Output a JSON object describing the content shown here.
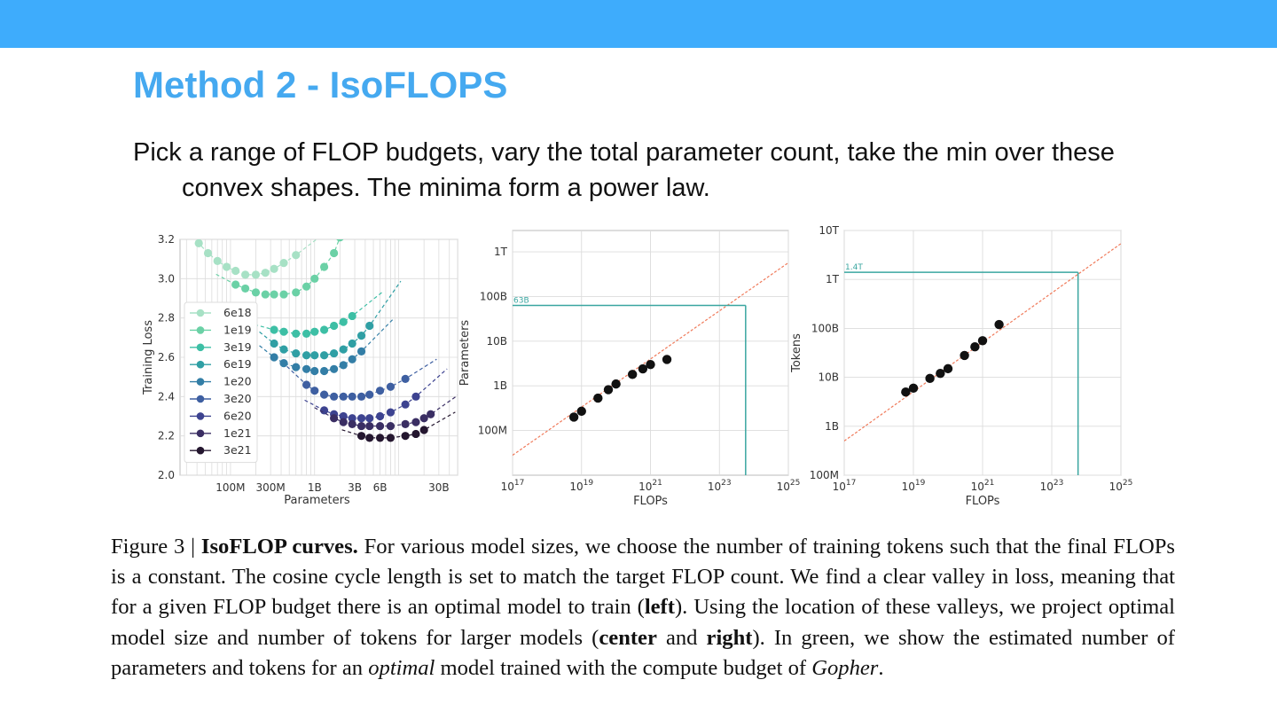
{
  "slide": {
    "title": "Method 2 - IsoFLOPS",
    "bullet_line1": "Pick a range of FLOP budgets, vary the total parameter count, take the min over these",
    "bullet_line2": "convex shapes. The minima form a power law."
  },
  "caption": {
    "fig_label": "Figure 3 | ",
    "fig_title": "IsoFLOP curves.",
    "t1": " For various model sizes, we choose the number of training tokens such that the final FLOPs is a constant. The cosine cycle length is set to match the target FLOP count. We find a clear valley in loss, meaning that for a given FLOP budget there is an optimal model to train (",
    "b_left": "left",
    "t2": "). Using the location of these valleys, we project optimal model size and number of tokens for larger models (",
    "b_center": "center",
    "t3": " and ",
    "b_right": "right",
    "t4": "). In green, we show the estimated number of parameters and tokens for an ",
    "i_optimal": "optimal",
    "t5": " model trained with the compute budget of ",
    "i_gopher": "Gopher",
    "t6": "."
  },
  "colors": {
    "topbar": "#3eacfc",
    "title": "#45a9f0",
    "projection": "#3aa6a0",
    "fit_line": "#f07a5a"
  },
  "chart_data": [
    {
      "type": "line",
      "panel": "left",
      "xlabel": "Parameters",
      "ylabel": "Training Loss",
      "x_scale": "log",
      "ylim": [
        2.0,
        3.2
      ],
      "x_ticks": [
        {
          "value": 100000000.0,
          "label": "100M"
        },
        {
          "value": 300000000.0,
          "label": "300M"
        },
        {
          "value": 1000000000.0,
          "label": "1B"
        },
        {
          "value": 3000000000.0,
          "label": "3B"
        },
        {
          "value": 6000000000.0,
          "label": "6B"
        },
        {
          "value": 30000000000.0,
          "label": "30B"
        }
      ],
      "y_ticks": [
        {
          "value": 2.0,
          "label": "2.0"
        },
        {
          "value": 2.2,
          "label": "2.2"
        },
        {
          "value": 2.4,
          "label": "2.4"
        },
        {
          "value": 2.6,
          "label": "2.6"
        },
        {
          "value": 2.8,
          "label": "2.8"
        },
        {
          "value": 3.0,
          "label": "3.0"
        },
        {
          "value": 3.2,
          "label": "3.2"
        }
      ],
      "grid": true,
      "legend_position": "left",
      "series": [
        {
          "name": "6e18",
          "color": "#a7e1c5",
          "x": [
            42000000.0,
            54000000.0,
            70000000.0,
            90000000.0,
            115000000.0,
            150000000.0,
            200000000.0,
            260000000.0,
            330000000.0,
            430000000.0,
            600000000.0
          ],
          "y": [
            3.18,
            3.13,
            3.09,
            3.06,
            3.04,
            3.02,
            3.02,
            3.03,
            3.05,
            3.08,
            3.12
          ]
        },
        {
          "name": "1e19",
          "color": "#6bd1a6",
          "x": [
            115000000.0,
            150000000.0,
            200000000.0,
            260000000.0,
            330000000.0,
            430000000.0,
            600000000.0,
            800000000.0,
            1000000000.0,
            1300000000.0,
            1700000000.0,
            2000000000.0
          ],
          "y": [
            2.97,
            2.95,
            2.93,
            2.92,
            2.92,
            2.92,
            2.93,
            2.96,
            3.0,
            3.06,
            3.13,
            3.21
          ]
        },
        {
          "name": "3e19",
          "color": "#3dbfa5",
          "x": [
            330000000.0,
            430000000.0,
            600000000.0,
            800000000.0,
            1000000000.0,
            1300000000.0,
            1700000000.0,
            2200000000.0,
            2800000000.0
          ],
          "y": [
            2.74,
            2.73,
            2.72,
            2.72,
            2.73,
            2.74,
            2.76,
            2.78,
            2.81
          ]
        },
        {
          "name": "6e19",
          "color": "#2f9fa4",
          "x": [
            330000000.0,
            430000000.0,
            600000000.0,
            800000000.0,
            1000000000.0,
            1300000000.0,
            1700000000.0,
            2200000000.0,
            2800000000.0,
            3600000000.0,
            4500000000.0
          ],
          "y": [
            2.67,
            2.64,
            2.62,
            2.61,
            2.61,
            2.61,
            2.62,
            2.64,
            2.67,
            2.71,
            2.76
          ]
        },
        {
          "name": "1e20",
          "color": "#337ea6",
          "x": [
            330000000.0,
            430000000.0,
            600000000.0,
            800000000.0,
            1000000000.0,
            1300000000.0,
            1700000000.0,
            2200000000.0,
            2800000000.0,
            3600000000.0
          ],
          "y": [
            2.6,
            2.57,
            2.55,
            2.54,
            2.53,
            2.53,
            2.54,
            2.56,
            2.59,
            2.63
          ]
        },
        {
          "name": "3e20",
          "color": "#3e5fa1",
          "x": [
            800000000.0,
            1000000000.0,
            1300000000.0,
            1700000000.0,
            2200000000.0,
            2800000000.0,
            3600000000.0,
            4500000000.0,
            6000000000.0,
            8000000000.0,
            12000000000.0
          ],
          "y": [
            2.46,
            2.43,
            2.41,
            2.4,
            2.4,
            2.4,
            2.4,
            2.41,
            2.43,
            2.45,
            2.49
          ]
        },
        {
          "name": "6e20",
          "color": "#3d4390",
          "x": [
            1300000000.0,
            1700000000.0,
            2200000000.0,
            2800000000.0,
            3600000000.0,
            4500000000.0,
            6000000000.0,
            8000000000.0,
            12000000000.0,
            16000000000.0
          ],
          "y": [
            2.33,
            2.31,
            2.3,
            2.29,
            2.29,
            2.29,
            2.3,
            2.32,
            2.36,
            2.4
          ]
        },
        {
          "name": "1e21",
          "color": "#3a2e63",
          "x": [
            1700000000.0,
            2200000000.0,
            2800000000.0,
            3600000000.0,
            4500000000.0,
            6000000000.0,
            8000000000.0,
            12000000000.0,
            16000000000.0,
            20000000000.0,
            24000000000.0
          ],
          "y": [
            2.29,
            2.27,
            2.26,
            2.25,
            2.25,
            2.25,
            2.25,
            2.26,
            2.27,
            2.29,
            2.31
          ]
        },
        {
          "name": "3e21",
          "color": "#24162f",
          "x": [
            3600000000.0,
            4500000000.0,
            6000000000.0,
            8000000000.0,
            12000000000.0,
            16000000000.0,
            20000000000.0
          ],
          "y": [
            2.2,
            2.19,
            2.19,
            2.19,
            2.2,
            2.21,
            2.23
          ]
        }
      ]
    },
    {
      "type": "scatter",
      "panel": "center",
      "xlabel": "FLOPs",
      "ylabel": "Parameters",
      "x_scale": "log",
      "y_scale": "log",
      "xlim": [
        1e+17,
        1e+25
      ],
      "ylim": [
        10000000.0,
        3000000000000.0
      ],
      "x_ticks": [
        {
          "value": 1e+17,
          "base": "10",
          "exp": "17"
        },
        {
          "value": 1e+19,
          "base": "10",
          "exp": "19"
        },
        {
          "value": 1e+21,
          "base": "10",
          "exp": "21"
        },
        {
          "value": 1e+23,
          "base": "10",
          "exp": "23"
        },
        {
          "value": 1e+25,
          "base": "10",
          "exp": "25"
        }
      ],
      "y_ticks": [
        {
          "value": 100000000.0,
          "label": "100M"
        },
        {
          "value": 1000000000.0,
          "label": "1B"
        },
        {
          "value": 10000000000.0,
          "label": "10B"
        },
        {
          "value": 100000000000.0,
          "label": "100B"
        },
        {
          "value": 1000000000000.0,
          "label": "1T"
        }
      ],
      "grid": true,
      "points": {
        "x": [
          6e+18,
          1e+19,
          3e+19,
          6e+19,
          1e+20,
          3e+20,
          6e+20,
          1e+21,
          3e+21
        ],
        "y": [
          200000000.0,
          270000000.0,
          530000000.0,
          820000000.0,
          1100000000.0,
          1800000000.0,
          2400000000.0,
          3000000000.0,
          3900000000.0
        ]
      },
      "fit_line": {
        "x": [
          1e+17,
          1e+25
        ],
        "y": [
          28000000.0,
          570000000000.0
        ]
      },
      "projection": {
        "x": 5.76e+23,
        "y": 63000000000.0,
        "label": "63B"
      }
    },
    {
      "type": "scatter",
      "panel": "right",
      "xlabel": "FLOPs",
      "ylabel": "Tokens",
      "x_scale": "log",
      "y_scale": "log",
      "xlim": [
        1e+17,
        1e+25
      ],
      "ylim": [
        100000000.0,
        10000000000000.0
      ],
      "x_ticks": [
        {
          "value": 1e+17,
          "base": "10",
          "exp": "17"
        },
        {
          "value": 1e+19,
          "base": "10",
          "exp": "19"
        },
        {
          "value": 1e+21,
          "base": "10",
          "exp": "21"
        },
        {
          "value": 1e+23,
          "base": "10",
          "exp": "23"
        },
        {
          "value": 1e+25,
          "base": "10",
          "exp": "25"
        }
      ],
      "y_ticks": [
        {
          "value": 100000000.0,
          "label": "100M"
        },
        {
          "value": 1000000000.0,
          "label": "1B"
        },
        {
          "value": 10000000000.0,
          "label": "10B"
        },
        {
          "value": 100000000000.0,
          "label": "100B"
        },
        {
          "value": 1000000000000.0,
          "label": "1T"
        },
        {
          "value": 10000000000000.0,
          "label": "10T"
        }
      ],
      "grid": true,
      "points": {
        "x": [
          6e+18,
          1e+19,
          3e+19,
          6e+19,
          1e+20,
          3e+20,
          6e+20,
          1e+21,
          3e+21
        ],
        "y": [
          5000000000.0,
          6000000000.0,
          9500000000.0,
          12000000000.0,
          15000000000.0,
          28000000000.0,
          42000000000.0,
          56000000000.0,
          120000000000.0
        ]
      },
      "fit_line": {
        "x": [
          1e+17,
          1e+25
        ],
        "y": [
          500000000.0,
          5400000000000.0
        ]
      },
      "projection": {
        "x": 5.76e+23,
        "y": 1400000000000.0,
        "label": "1.4T"
      }
    }
  ]
}
